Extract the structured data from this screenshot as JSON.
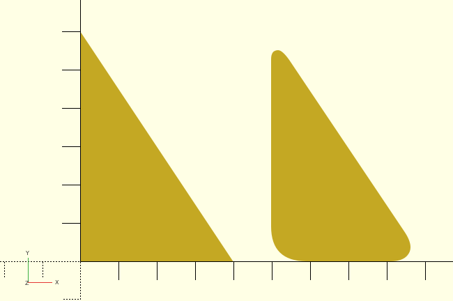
{
  "viewport": {
    "background_color": "#FFFFE5",
    "shape_color": "#C4A823",
    "axis_color": "#000000"
  },
  "axes_gizmo": {
    "labels": {
      "x": "X",
      "y": "Y",
      "z": "Z"
    },
    "colors": {
      "x": "#E53935",
      "y": "#3CB043",
      "z": "#2F5BD3"
    }
  },
  "objects": [
    {
      "name": "triangle",
      "shape": "right-triangle"
    },
    {
      "name": "rounded-triangle",
      "shape": "rounded-right-triangle"
    }
  ]
}
